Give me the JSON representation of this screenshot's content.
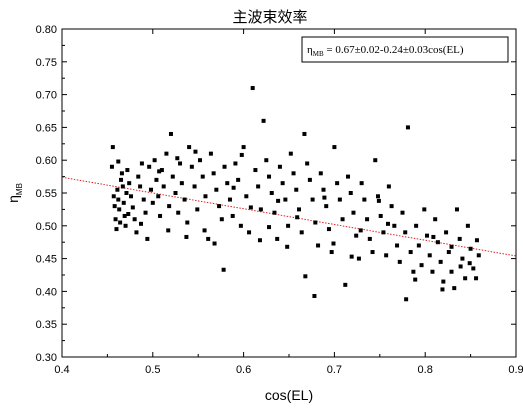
{
  "chart_data": {
    "type": "scatter",
    "title": "主波束效率",
    "xlabel": "cos(EL)",
    "ylabel": "η",
    "ylabel_sub": "MB",
    "xlim": [
      0.4,
      0.9
    ],
    "ylim": [
      0.3,
      0.8
    ],
    "xticks": [
      "0.4",
      "0.5",
      "0.6",
      "0.7",
      "0.8",
      "0.9"
    ],
    "yticks": [
      "0.30",
      "0.35",
      "0.40",
      "0.45",
      "0.50",
      "0.55",
      "0.60",
      "0.65",
      "0.70",
      "0.75",
      "0.80"
    ],
    "grid": false,
    "legend_position": "top-right",
    "legend": {
      "symbol": "η",
      "subscript": "MB",
      "text": " = 0.67±0.02-0.24±0.03cos(EL)"
    },
    "fit_line": {
      "intercept": 0.67,
      "slope": -0.24,
      "color": "#e02020",
      "style": "dotted"
    },
    "marker_color": "#000000",
    "series": [
      {
        "points": [
          [
            0.455,
            0.59
          ],
          [
            0.456,
            0.62
          ],
          [
            0.457,
            0.545
          ],
          [
            0.458,
            0.53
          ],
          [
            0.459,
            0.51
          ],
          [
            0.46,
            0.495
          ],
          [
            0.461,
            0.555
          ],
          [
            0.462,
            0.54
          ],
          [
            0.463,
            0.525
          ],
          [
            0.464,
            0.505
          ],
          [
            0.465,
            0.57
          ],
          [
            0.466,
            0.58
          ],
          [
            0.467,
            0.56
          ],
          [
            0.468,
            0.535
          ],
          [
            0.469,
            0.515
          ],
          [
            0.47,
            0.5
          ],
          [
            0.471,
            0.55
          ],
          [
            0.472,
            0.585
          ],
          [
            0.474,
            0.565
          ],
          [
            0.476,
            0.545
          ],
          [
            0.478,
            0.528
          ],
          [
            0.48,
            0.51
          ],
          [
            0.482,
            0.49
          ],
          [
            0.484,
            0.575
          ],
          [
            0.486,
            0.56
          ],
          [
            0.488,
            0.595
          ],
          [
            0.49,
            0.54
          ],
          [
            0.492,
            0.52
          ],
          [
            0.494,
            0.48
          ],
          [
            0.496,
            0.59
          ],
          [
            0.498,
            0.555
          ],
          [
            0.5,
            0.535
          ],
          [
            0.502,
            0.6
          ],
          [
            0.504,
            0.57
          ],
          [
            0.506,
            0.545
          ],
          [
            0.508,
            0.515
          ],
          [
            0.51,
            0.585
          ],
          [
            0.512,
            0.56
          ],
          [
            0.515,
            0.61
          ],
          [
            0.518,
            0.53
          ],
          [
            0.52,
            0.64
          ],
          [
            0.522,
            0.575
          ],
          [
            0.525,
            0.55
          ],
          [
            0.528,
            0.52
          ],
          [
            0.53,
            0.595
          ],
          [
            0.532,
            0.565
          ],
          [
            0.535,
            0.54
          ],
          [
            0.538,
            0.505
          ],
          [
            0.54,
            0.62
          ],
          [
            0.543,
            0.59
          ],
          [
            0.546,
            0.56
          ],
          [
            0.549,
            0.525
          ],
          [
            0.552,
            0.6
          ],
          [
            0.555,
            0.575
          ],
          [
            0.558,
            0.545
          ],
          [
            0.561,
            0.48
          ],
          [
            0.564,
            0.61
          ],
          [
            0.567,
            0.58
          ],
          [
            0.57,
            0.555
          ],
          [
            0.573,
            0.53
          ],
          [
            0.576,
            0.51
          ],
          [
            0.579,
            0.59
          ],
          [
            0.582,
            0.565
          ],
          [
            0.585,
            0.54
          ],
          [
            0.588,
            0.515
          ],
          [
            0.591,
            0.595
          ],
          [
            0.594,
            0.57
          ],
          [
            0.597,
            0.5
          ],
          [
            0.6,
            0.62
          ],
          [
            0.603,
            0.545
          ],
          [
            0.606,
            0.49
          ],
          [
            0.61,
            0.71
          ],
          [
            0.613,
            0.585
          ],
          [
            0.616,
            0.56
          ],
          [
            0.619,
            0.525
          ],
          [
            0.622,
            0.66
          ],
          [
            0.625,
            0.6
          ],
          [
            0.628,
            0.575
          ],
          [
            0.631,
            0.55
          ],
          [
            0.634,
            0.52
          ],
          [
            0.637,
            0.48
          ],
          [
            0.64,
            0.59
          ],
          [
            0.643,
            0.565
          ],
          [
            0.646,
            0.54
          ],
          [
            0.649,
            0.5
          ],
          [
            0.652,
            0.61
          ],
          [
            0.655,
            0.58
          ],
          [
            0.658,
            0.555
          ],
          [
            0.661,
            0.525
          ],
          [
            0.664,
            0.49
          ],
          [
            0.667,
            0.64
          ],
          [
            0.67,
            0.595
          ],
          [
            0.673,
            0.57
          ],
          [
            0.676,
            0.54
          ],
          [
            0.679,
            0.505
          ],
          [
            0.682,
            0.47
          ],
          [
            0.685,
            0.58
          ],
          [
            0.688,
            0.555
          ],
          [
            0.691,
            0.53
          ],
          [
            0.694,
            0.495
          ],
          [
            0.697,
            0.46
          ],
          [
            0.7,
            0.62
          ],
          [
            0.703,
            0.565
          ],
          [
            0.706,
            0.54
          ],
          [
            0.709,
            0.51
          ],
          [
            0.712,
            0.41
          ],
          [
            0.715,
            0.575
          ],
          [
            0.718,
            0.55
          ],
          [
            0.721,
            0.52
          ],
          [
            0.724,
            0.485
          ],
          [
            0.727,
            0.45
          ],
          [
            0.73,
            0.565
          ],
          [
            0.733,
            0.54
          ],
          [
            0.736,
            0.51
          ],
          [
            0.739,
            0.48
          ],
          [
            0.742,
            0.46
          ],
          [
            0.745,
            0.6
          ],
          [
            0.748,
            0.545
          ],
          [
            0.751,
            0.515
          ],
          [
            0.754,
            0.49
          ],
          [
            0.757,
            0.455
          ],
          [
            0.76,
            0.56
          ],
          [
            0.763,
            0.53
          ],
          [
            0.766,
            0.5
          ],
          [
            0.769,
            0.47
          ],
          [
            0.772,
            0.445
          ],
          [
            0.775,
            0.52
          ],
          [
            0.778,
            0.49
          ],
          [
            0.781,
            0.65
          ],
          [
            0.784,
            0.46
          ],
          [
            0.787,
            0.43
          ],
          [
            0.79,
            0.5
          ],
          [
            0.793,
            0.47
          ],
          [
            0.796,
            0.44
          ],
          [
            0.799,
            0.525
          ],
          [
            0.802,
            0.485
          ],
          [
            0.805,
            0.455
          ],
          [
            0.808,
            0.43
          ],
          [
            0.811,
            0.51
          ],
          [
            0.814,
            0.475
          ],
          [
            0.817,
            0.445
          ],
          [
            0.82,
            0.415
          ],
          [
            0.823,
            0.49
          ],
          [
            0.826,
            0.46
          ],
          [
            0.829,
            0.43
          ],
          [
            0.832,
            0.405
          ],
          [
            0.835,
            0.525
          ],
          [
            0.838,
            0.48
          ],
          [
            0.841,
            0.45
          ],
          [
            0.844,
            0.42
          ],
          [
            0.847,
            0.5
          ],
          [
            0.85,
            0.465
          ],
          [
            0.853,
            0.435
          ],
          [
            0.856,
            0.42
          ],
          [
            0.859,
            0.455
          ],
          [
            0.462,
            0.598
          ],
          [
            0.473,
            0.518
          ],
          [
            0.487,
            0.503
          ],
          [
            0.507,
            0.583
          ],
          [
            0.517,
            0.493
          ],
          [
            0.527,
            0.603
          ],
          [
            0.537,
            0.483
          ],
          [
            0.547,
            0.613
          ],
          [
            0.557,
            0.493
          ],
          [
            0.568,
            0.473
          ],
          [
            0.578,
            0.433
          ],
          [
            0.589,
            0.558
          ],
          [
            0.598,
            0.608
          ],
          [
            0.608,
            0.528
          ],
          [
            0.618,
            0.478
          ],
          [
            0.628,
            0.498
          ],
          [
            0.638,
            0.538
          ],
          [
            0.648,
            0.468
          ],
          [
            0.659,
            0.513
          ],
          [
            0.668,
            0.423
          ],
          [
            0.678,
            0.393
          ],
          [
            0.689,
            0.543
          ],
          [
            0.699,
            0.473
          ],
          [
            0.719,
            0.453
          ],
          [
            0.729,
            0.493
          ],
          [
            0.749,
            0.538
          ],
          [
            0.759,
            0.503
          ],
          [
            0.779,
            0.388
          ],
          [
            0.789,
            0.418
          ],
          [
            0.809,
            0.483
          ],
          [
            0.819,
            0.403
          ],
          [
            0.829,
            0.468
          ],
          [
            0.839,
            0.438
          ],
          [
            0.849,
            0.443
          ],
          [
            0.857,
            0.478
          ]
        ]
      }
    ]
  }
}
